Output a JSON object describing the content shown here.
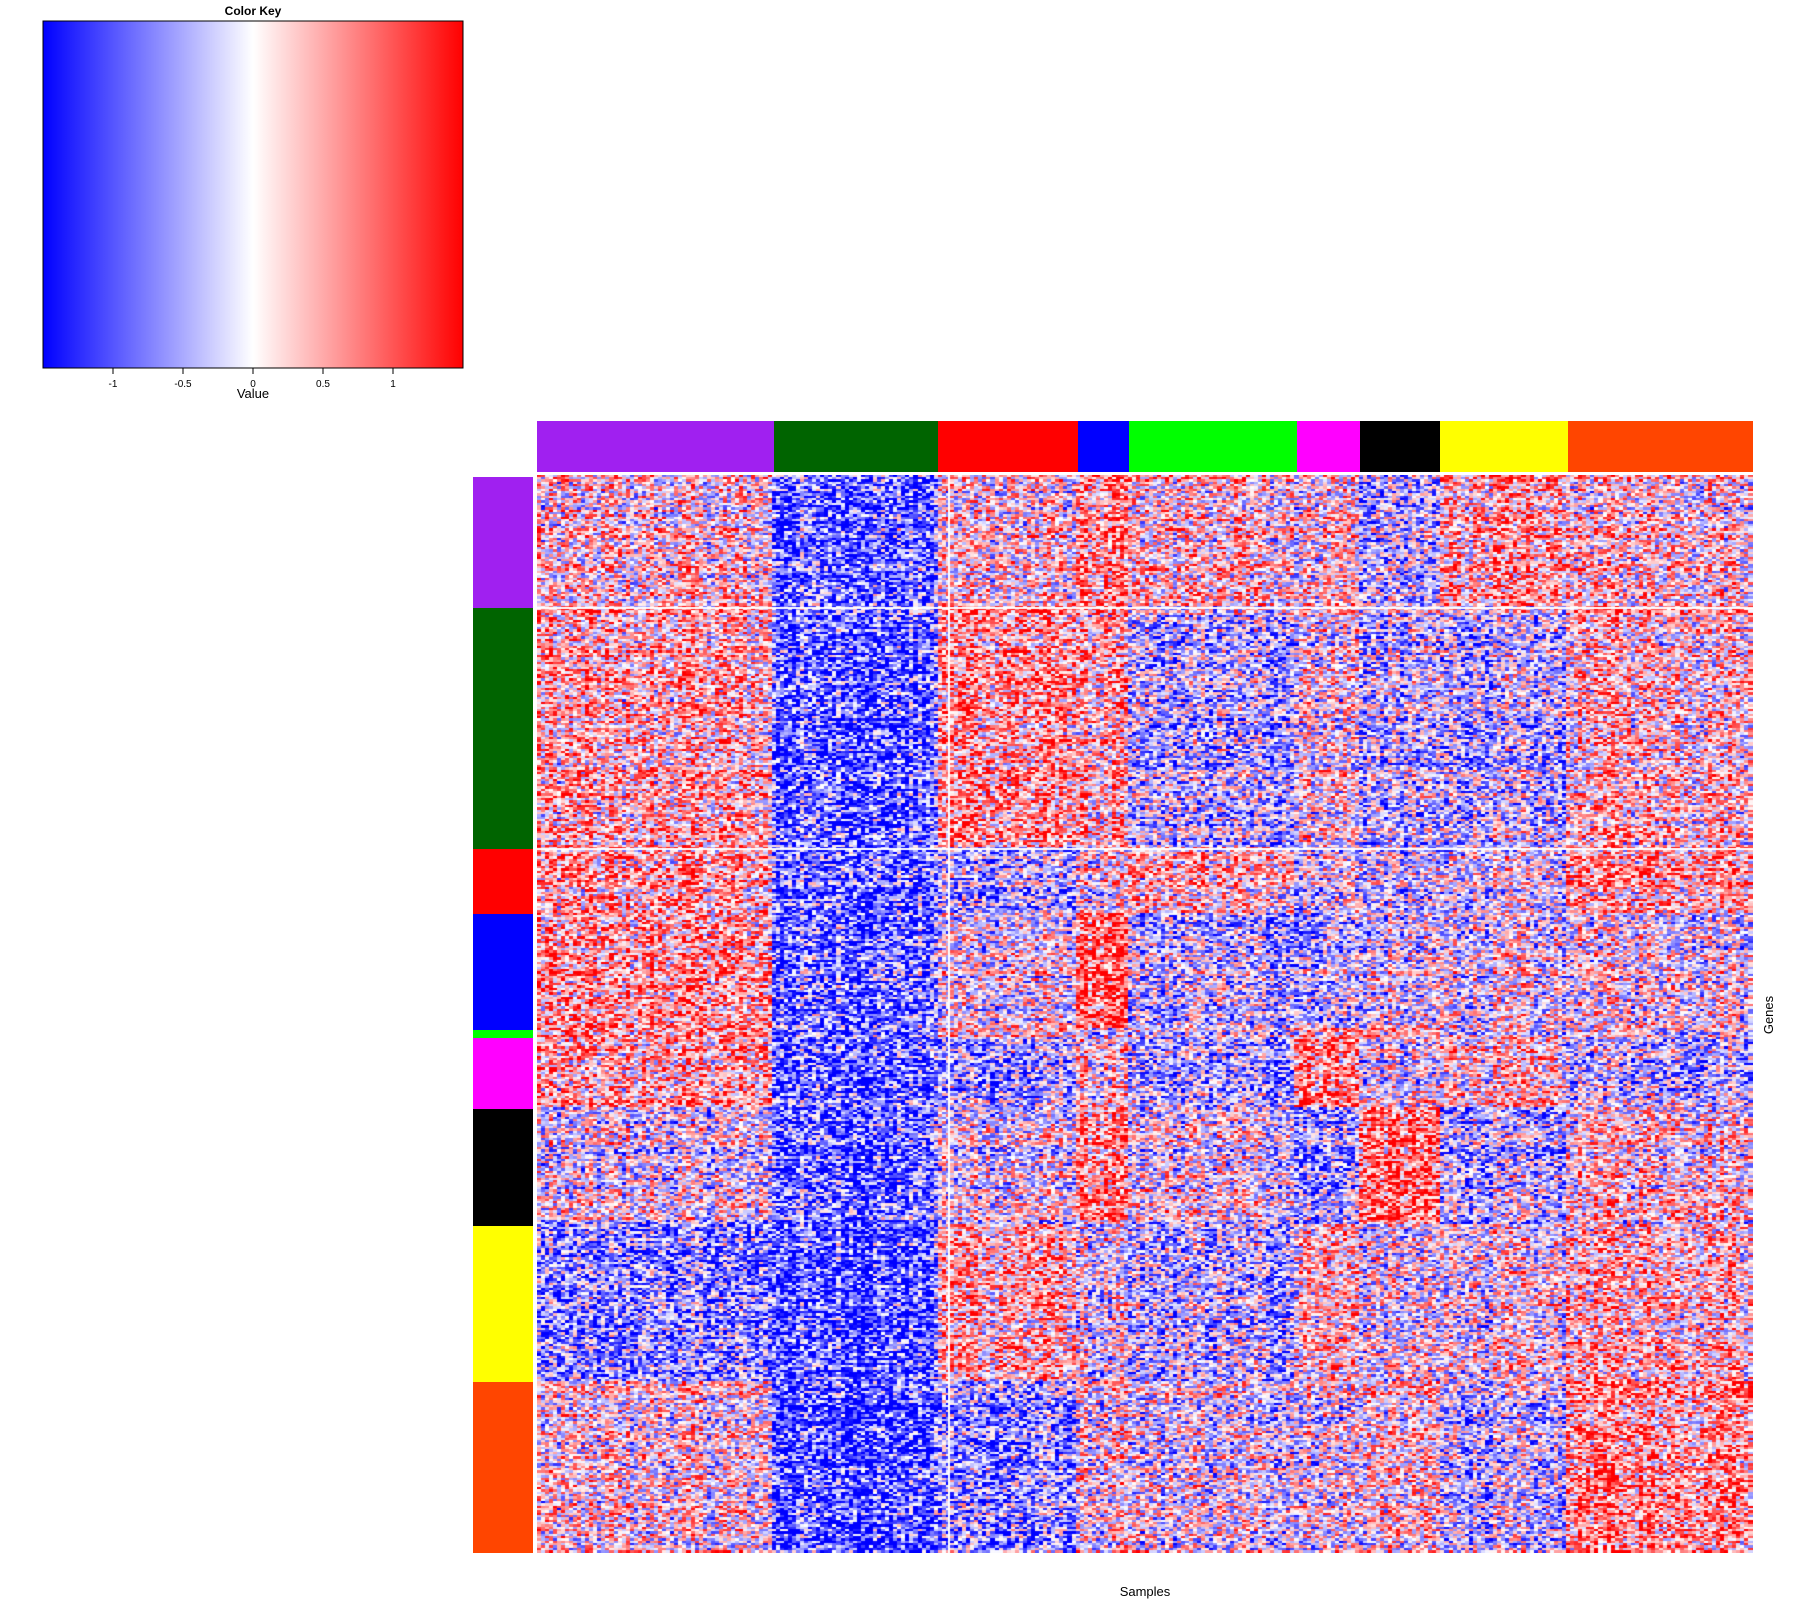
{
  "chart_data": {
    "type": "heatmap",
    "title": "",
    "xlabel": "Samples",
    "ylabel": "Genes",
    "color_key": {
      "title": "Color Key",
      "xlabel": "Value",
      "range": [
        -1.5,
        1.5
      ],
      "colors": [
        "#0000ff",
        "#ffffff",
        "#ff0000"
      ],
      "ticks": [
        -1,
        -0.5,
        0,
        0.5,
        1
      ],
      "tick_labels": [
        "-1",
        "-0.5",
        "0",
        "0.5",
        "1"
      ]
    },
    "column_groups": [
      {
        "color": "#a020f0",
        "fraction": 0.195
      },
      {
        "color": "#006400",
        "fraction": 0.135
      },
      {
        "color": "#ff0000",
        "fraction": 0.115
      },
      {
        "color": "#0000ff",
        "fraction": 0.042
      },
      {
        "color": "#00ff00",
        "fraction": 0.138
      },
      {
        "color": "#ff00ff",
        "fraction": 0.052
      },
      {
        "color": "#000000",
        "fraction": 0.066
      },
      {
        "color": "#ffff00",
        "fraction": 0.105
      },
      {
        "color": "#ff4500",
        "fraction": 0.152
      }
    ],
    "row_groups": [
      {
        "color": "#a020f0",
        "fraction": 0.122
      },
      {
        "color": "#006400",
        "fraction": 0.224
      },
      {
        "color": "#ff0000",
        "fraction": 0.06
      },
      {
        "color": "#0000ff",
        "fraction": 0.108
      },
      {
        "color": "#00ff00",
        "fraction": 0.007
      },
      {
        "color": "#ff00ff",
        "fraction": 0.066
      },
      {
        "color": "#000000",
        "fraction": 0.109
      },
      {
        "color": "#ffff00",
        "fraction": 0.145
      },
      {
        "color": "#ff4500",
        "fraction": 0.159
      }
    ],
    "n_columns": 300,
    "n_rows": 460
  }
}
